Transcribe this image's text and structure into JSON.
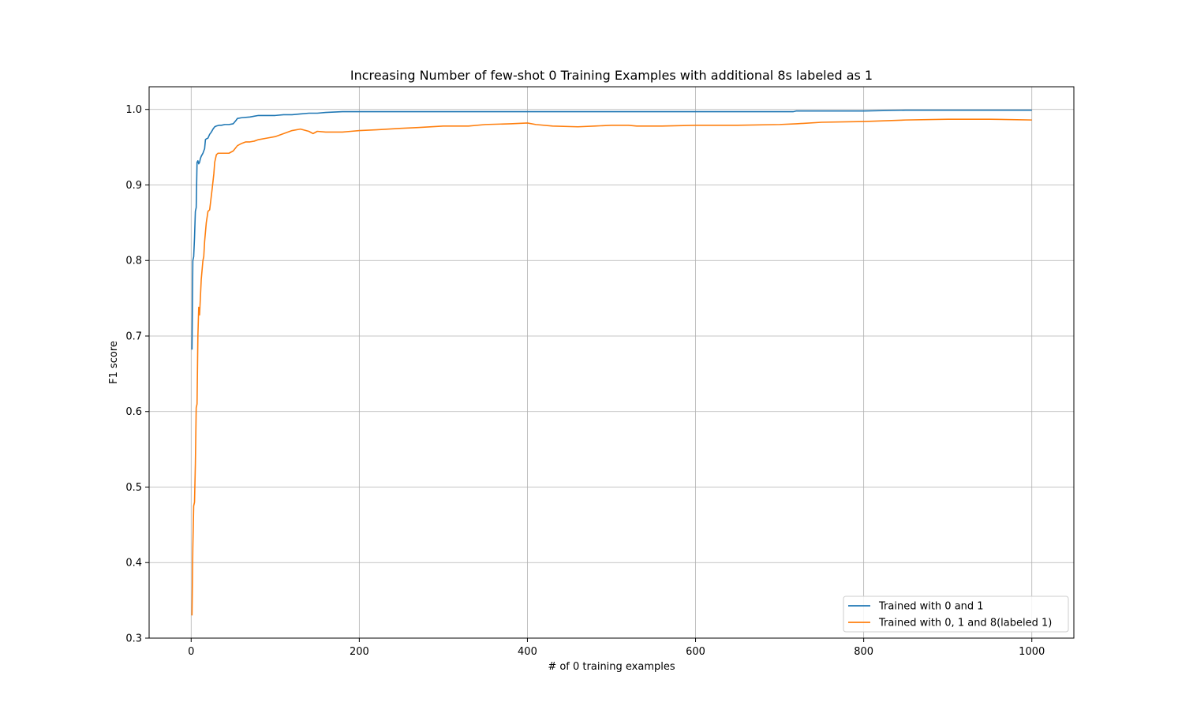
{
  "chart_data": {
    "type": "line",
    "title": "Increasing Number of few-shot 0 Training Examples with additional 8s labeled as 1",
    "xlabel": "# of 0 training examples",
    "ylabel": "F1 score",
    "xlim": [
      -50,
      1050
    ],
    "ylim": [
      0.3,
      1.03
    ],
    "xticks": [
      0,
      200,
      400,
      600,
      800,
      1000
    ],
    "xtick_labels": [
      "0",
      "200",
      "400",
      "600",
      "800",
      "1000"
    ],
    "yticks": [
      0.3,
      0.4,
      0.5,
      0.6,
      0.7,
      0.8,
      0.9,
      1.0
    ],
    "ytick_labels": [
      "0.3",
      "0.4",
      "0.5",
      "0.6",
      "0.7",
      "0.8",
      "0.9",
      "1.0"
    ],
    "grid": true,
    "legend_position": "lower-right",
    "series": [
      {
        "name": "Trained with 0 and 1",
        "color": "#1f77b4",
        "x": [
          1,
          2,
          3,
          4,
          5,
          6,
          7,
          8,
          9,
          10,
          11,
          12,
          13,
          14,
          15,
          16,
          17,
          18,
          20,
          22,
          24,
          26,
          28,
          30,
          33,
          36,
          40,
          45,
          50,
          53,
          55,
          60,
          70,
          75,
          80,
          90,
          100,
          110,
          120,
          130,
          140,
          150,
          160,
          180,
          200,
          260,
          300,
          400,
          480,
          500,
          580,
          600,
          716,
          720,
          800,
          850,
          900,
          1000
        ],
        "y": [
          0.682,
          0.8,
          0.805,
          0.83,
          0.865,
          0.87,
          0.93,
          0.932,
          0.928,
          0.93,
          0.935,
          0.938,
          0.94,
          0.942,
          0.945,
          0.948,
          0.96,
          0.961,
          0.962,
          0.967,
          0.97,
          0.974,
          0.977,
          0.978,
          0.979,
          0.979,
          0.98,
          0.98,
          0.981,
          0.985,
          0.988,
          0.989,
          0.99,
          0.991,
          0.992,
          0.992,
          0.992,
          0.993,
          0.993,
          0.994,
          0.995,
          0.995,
          0.996,
          0.997,
          0.997,
          0.997,
          0.997,
          0.997,
          0.997,
          0.997,
          0.997,
          0.997,
          0.997,
          0.998,
          0.998,
          0.999,
          0.999,
          0.999
        ]
      },
      {
        "name": "Trained with 0, 1 and 8(labeled 1)",
        "color": "#ff7f0e",
        "x": [
          1,
          2,
          3,
          4,
          5,
          6,
          7,
          8,
          9,
          10,
          12,
          14,
          15,
          16,
          18,
          20,
          22,
          25,
          27,
          28,
          30,
          32,
          35,
          40,
          45,
          50,
          55,
          60,
          65,
          70,
          75,
          80,
          90,
          100,
          110,
          120,
          130,
          140,
          145,
          150,
          160,
          170,
          180,
          190,
          200,
          220,
          250,
          270,
          300,
          330,
          350,
          380,
          400,
          410,
          430,
          460,
          480,
          500,
          520,
          530,
          560,
          600,
          650,
          700,
          720,
          750,
          800,
          850,
          900,
          950,
          1000
        ],
        "y": [
          0.33,
          0.42,
          0.475,
          0.48,
          0.53,
          0.605,
          0.61,
          0.7,
          0.738,
          0.728,
          0.775,
          0.8,
          0.805,
          0.825,
          0.85,
          0.865,
          0.867,
          0.895,
          0.915,
          0.93,
          0.94,
          0.942,
          0.942,
          0.942,
          0.942,
          0.945,
          0.952,
          0.955,
          0.957,
          0.957,
          0.958,
          0.96,
          0.962,
          0.964,
          0.968,
          0.972,
          0.974,
          0.971,
          0.968,
          0.971,
          0.97,
          0.97,
          0.97,
          0.971,
          0.972,
          0.973,
          0.975,
          0.976,
          0.978,
          0.978,
          0.98,
          0.981,
          0.982,
          0.98,
          0.978,
          0.977,
          0.978,
          0.979,
          0.979,
          0.978,
          0.978,
          0.979,
          0.979,
          0.98,
          0.981,
          0.983,
          0.984,
          0.986,
          0.987,
          0.987,
          0.986
        ]
      }
    ]
  }
}
